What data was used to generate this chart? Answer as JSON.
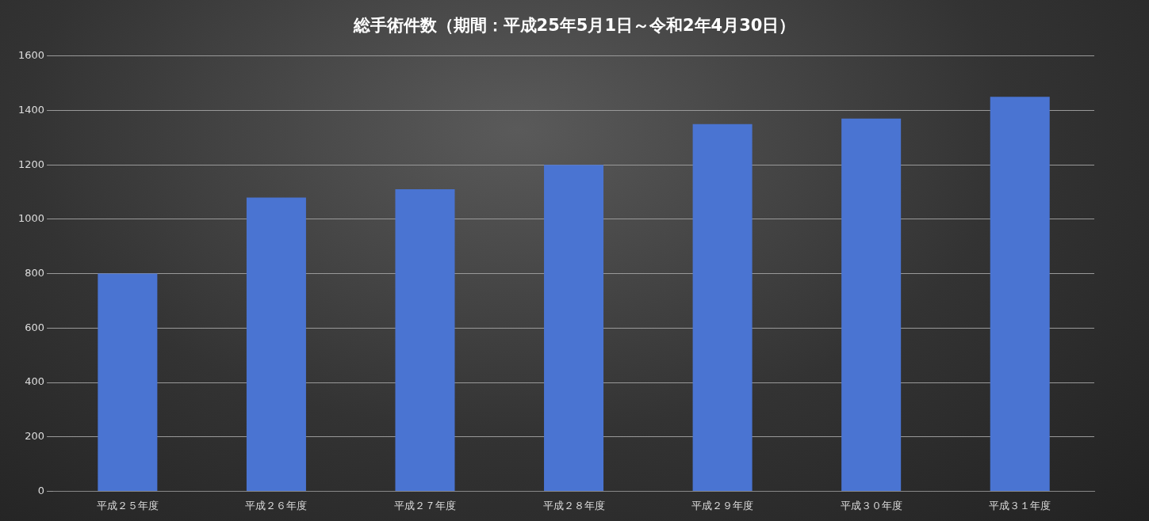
{
  "chart_data": {
    "type": "bar",
    "title": "総手術件数（期間：平成25年5月1日～令和2年4月30日）",
    "categories": [
      "平成２５年度",
      "平成２６年度",
      "平成２７年度",
      "平成２８年度",
      "平成２９年度",
      "平成３０年度",
      "平成３１年度"
    ],
    "values": [
      800,
      1080,
      1110,
      1200,
      1350,
      1370,
      1450
    ],
    "color": "#4a74d2",
    "ylim": [
      0,
      1600
    ],
    "yticks": [
      0,
      200,
      400,
      600,
      800,
      1000,
      1200,
      1400,
      1600
    ],
    "grid": "y"
  }
}
